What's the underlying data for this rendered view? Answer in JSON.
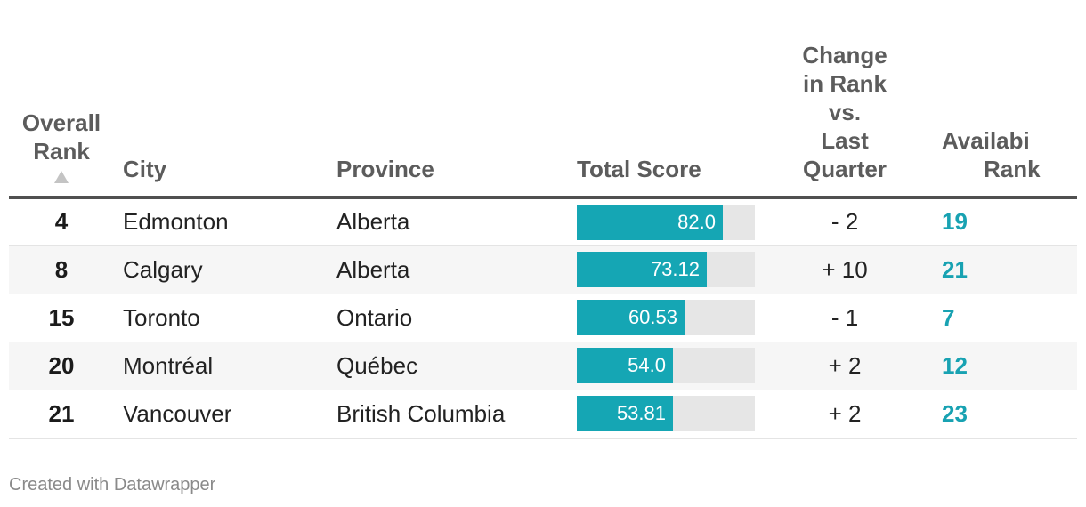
{
  "chart_data": {
    "type": "table",
    "columns": {
      "rank": [
        "Overall",
        "Rank"
      ],
      "city": "City",
      "province": "Province",
      "total_score": "Total Score",
      "change": [
        "Change",
        "in Rank",
        "vs.",
        "Last",
        "Quarter"
      ],
      "availability": [
        "Availabi",
        "Rank"
      ]
    },
    "sorted_by": "rank",
    "sort_direction": "ascending",
    "score_max": 100,
    "rows": [
      {
        "rank": "4",
        "city": "Edmonton",
        "province": "Alberta",
        "score": 82.0,
        "score_label": "82.0",
        "change": "- 2",
        "availability": "19"
      },
      {
        "rank": "8",
        "city": "Calgary",
        "province": "Alberta",
        "score": 73.12,
        "score_label": "73.12",
        "change": "+ 10",
        "availability": "21"
      },
      {
        "rank": "15",
        "city": "Toronto",
        "province": "Ontario",
        "score": 60.53,
        "score_label": "60.53",
        "change": "- 1",
        "availability": "7"
      },
      {
        "rank": "20",
        "city": "Montréal",
        "province": "Québec",
        "score": 54.0,
        "score_label": "54.0",
        "change": "+ 2",
        "availability": "12"
      },
      {
        "rank": "21",
        "city": "Vancouver",
        "province": "British Columbia",
        "score": 53.81,
        "score_label": "53.81",
        "change": "+ 2",
        "availability": "23"
      }
    ],
    "colors": {
      "bar": "#15a6b4",
      "bar_track": "#e6e6e6",
      "availability_text": "#18a2b2"
    }
  },
  "footer": {
    "credit": "Created with Datawrapper"
  }
}
